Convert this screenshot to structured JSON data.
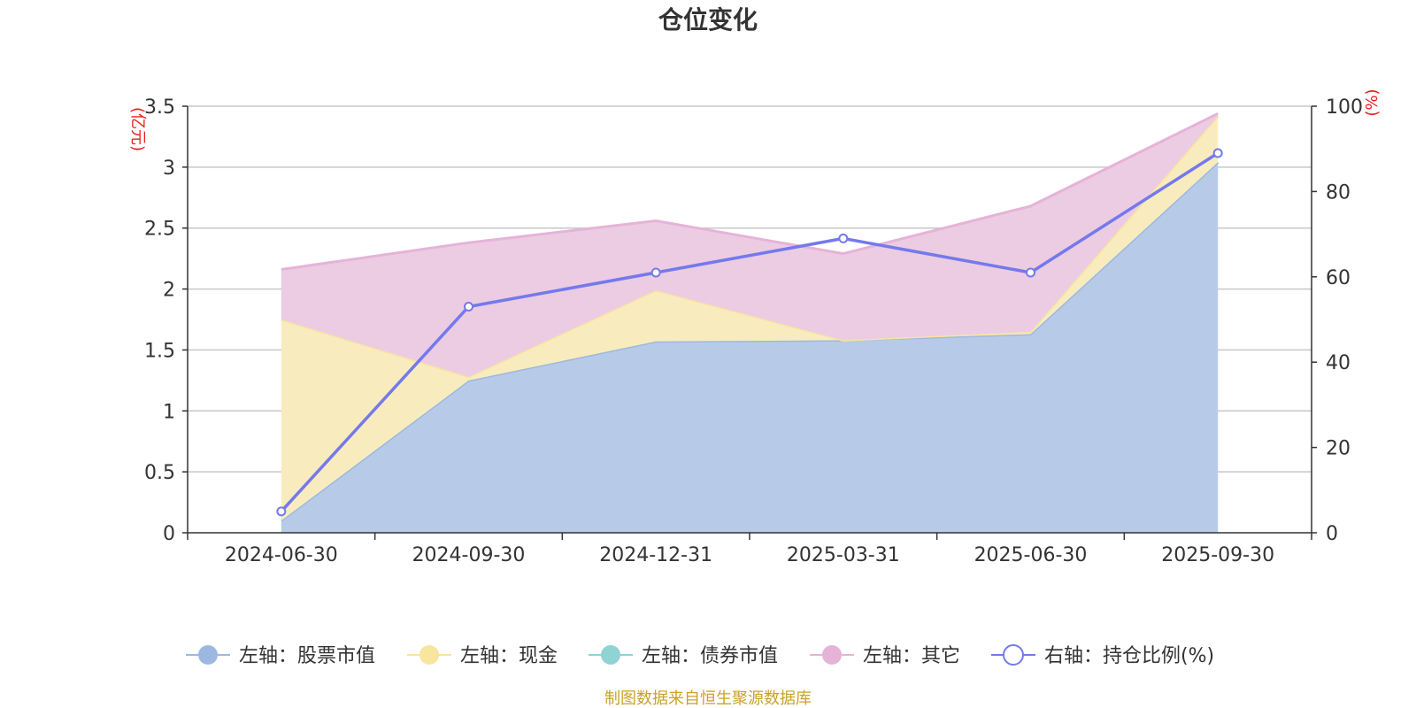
{
  "chart_data": {
    "type": "area",
    "title": "仓位变化",
    "categories": [
      "2024-06-30",
      "2024-09-30",
      "2024-12-31",
      "2025-03-31",
      "2025-06-30",
      "2025-09-30"
    ],
    "left_axis": {
      "unit": "(亿元)",
      "ylim": [
        0,
        3.5
      ],
      "ticks": [
        0,
        0.5,
        1,
        1.5,
        2,
        2.5,
        3,
        3.5
      ],
      "tick_labels": [
        "0",
        "0.5",
        "1",
        "1.5",
        "2",
        "2.5",
        "3",
        "3.5"
      ]
    },
    "right_axis": {
      "unit": "(%)",
      "ylim": [
        0,
        100
      ],
      "ticks": [
        0,
        20,
        40,
        60,
        80,
        100
      ],
      "tick_labels": [
        "0",
        "20",
        "40",
        "60",
        "80",
        "100"
      ]
    },
    "series": [
      {
        "name": "左轴：股票市值",
        "axis": "left",
        "kind": "stacked-area",
        "color": "#9db8e0",
        "fill": "#b7cbe8",
        "values": [
          0.1,
          1.25,
          1.57,
          1.58,
          1.63,
          3.04
        ]
      },
      {
        "name": "左轴：现金",
        "axis": "left",
        "kind": "stacked-area",
        "color": "#f7e3a1",
        "fill": "#f8ecbe",
        "values": [
          1.65,
          0.03,
          0.42,
          0.0,
          0.02,
          0.38
        ]
      },
      {
        "name": "左轴：债券市值",
        "axis": "left",
        "kind": "stacked-area",
        "color": "#8fd3d3",
        "fill": "#bfe6e6",
        "values": [
          0,
          0,
          0,
          0,
          0,
          0
        ]
      },
      {
        "name": "左轴：其它",
        "axis": "left",
        "kind": "stacked-area",
        "color": "#e6b3d8",
        "fill": "#eccce3",
        "values": [
          0.41,
          1.1,
          0.57,
          0.71,
          1.03,
          0.02
        ]
      },
      {
        "name": "右轴：持仓比例(%)",
        "axis": "right",
        "kind": "line",
        "color": "#7479ec",
        "values": [
          5,
          53,
          61,
          69,
          61,
          89
        ]
      }
    ],
    "legend_position": "bottom-center",
    "grid": true
  },
  "source_note": "制图数据来自恒生聚源数据库"
}
